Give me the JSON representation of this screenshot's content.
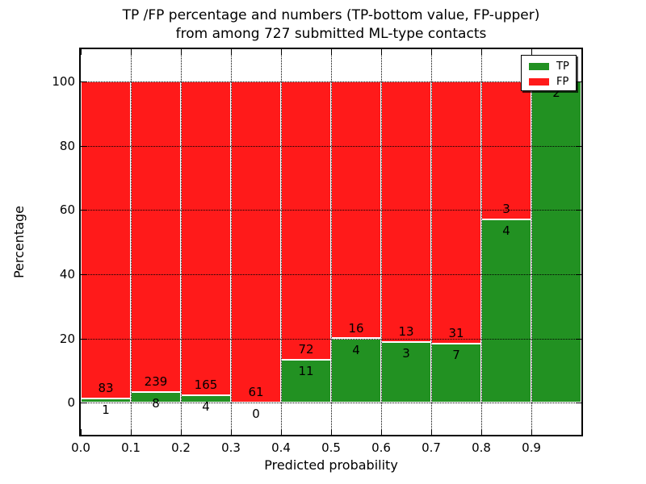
{
  "title": {
    "line1": "TP /FP percentage and numbers (TP-bottom value, FP-upper)",
    "line2": "from among 727 submitted ML-type contacts"
  },
  "axes": {
    "xlabel": "Predicted probability",
    "ylabel": "Percentage"
  },
  "legend": {
    "items": [
      {
        "label": "TP",
        "color": "#229122"
      },
      {
        "label": "FP",
        "color": "#ff1a1a"
      }
    ]
  },
  "colors": {
    "tp": "#229122",
    "fp": "#ff1a1a",
    "bar_edge": "#ffffff",
    "grid": "#000000",
    "background": "#ffffff"
  },
  "chart_data": {
    "type": "bar",
    "stacked": true,
    "title": "TP /FP percentage and numbers (TP-bottom value, FP-upper) from among 727 submitted ML-type contacts",
    "total_contacts": 727,
    "xlabel": "Predicted probability",
    "ylabel": "Percentage",
    "xlim": [
      0.0,
      1.0
    ],
    "ylim": [
      -10,
      110
    ],
    "xtick_labels": [
      "0.0",
      "0.1",
      "0.2",
      "0.3",
      "0.4",
      "0.5",
      "0.6",
      "0.7",
      "0.8",
      "0.9"
    ],
    "ytick_values": [
      0,
      20,
      40,
      60,
      80,
      100
    ],
    "grid": "dotted",
    "legend_position": "upper right",
    "categories": [
      "0.0-0.1",
      "0.1-0.2",
      "0.2-0.3",
      "0.3-0.4",
      "0.4-0.5",
      "0.5-0.6",
      "0.6-0.7",
      "0.7-0.8",
      "0.8-0.9",
      "0.9-1.0"
    ],
    "series": [
      {
        "name": "TP",
        "color": "#229122",
        "counts": [
          1,
          8,
          4,
          0,
          11,
          4,
          3,
          7,
          4,
          2
        ],
        "pct": [
          1.19,
          3.24,
          2.37,
          0.0,
          13.25,
          20.0,
          18.75,
          18.42,
          57.14,
          100.0
        ]
      },
      {
        "name": "FP",
        "color": "#ff1a1a",
        "counts": [
          83,
          239,
          165,
          61,
          72,
          16,
          13,
          31,
          3,
          0
        ],
        "pct": [
          98.81,
          96.76,
          97.63,
          100.0,
          86.75,
          80.0,
          81.25,
          81.58,
          42.86,
          0.0
        ]
      }
    ],
    "annotation_rule": "FP count printed above TP/FP boundary, TP count printed below it"
  }
}
